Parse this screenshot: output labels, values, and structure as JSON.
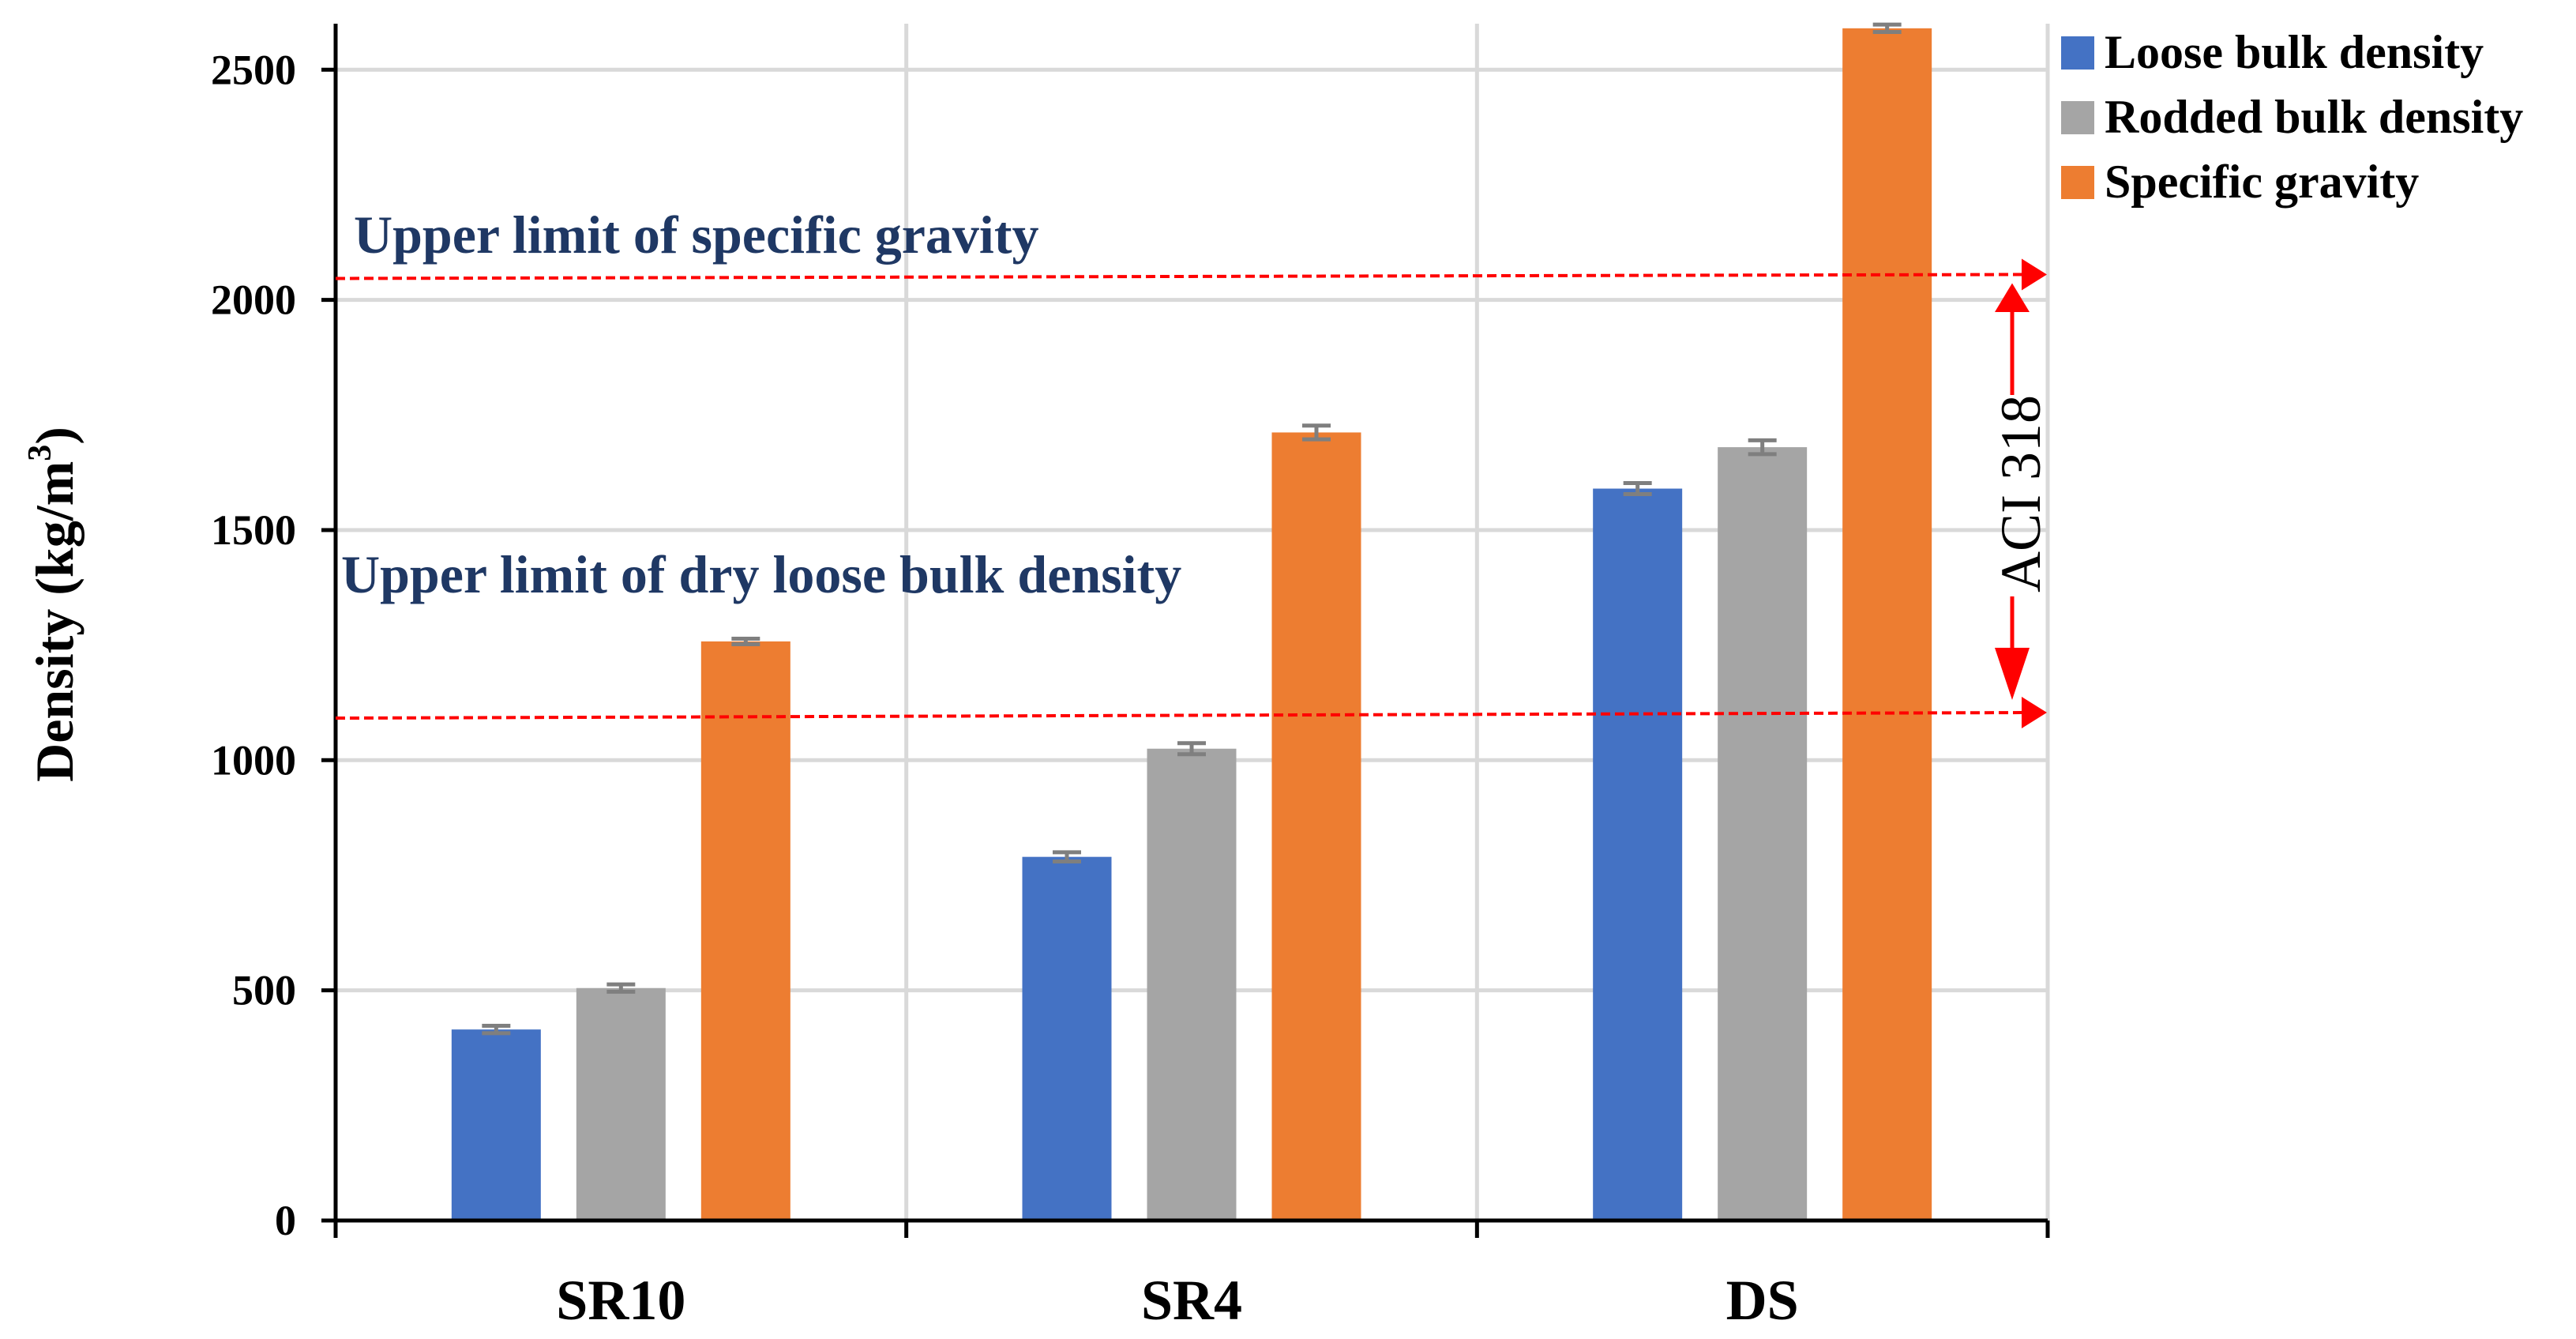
{
  "chart_data": {
    "type": "bar",
    "title": "",
    "xlabel": "",
    "ylabel": "Density (kg/m",
    "ylabel_superscript": "3",
    "ylabel_close": ")",
    "ylim": [
      0,
      2600
    ],
    "yticks": [
      0,
      500,
      1000,
      1500,
      2000,
      2500
    ],
    "categories": [
      "SR10",
      "SR4",
      "DS"
    ],
    "series": [
      {
        "name": "Loose bulk density",
        "color": "#4472C4",
        "values": [
          415,
          790,
          1590
        ],
        "errors": [
          8,
          10,
          12
        ]
      },
      {
        "name": "Rodded bulk density",
        "color": "#A5A5A5",
        "values": [
          505,
          1025,
          1680
        ],
        "errors": [
          8,
          12,
          15
        ]
      },
      {
        "name": "Specific gravity",
        "color": "#ED7D31",
        "values": [
          1258,
          1712,
          2590
        ],
        "errors": [
          6,
          15,
          8
        ]
      }
    ],
    "grid": true,
    "legend_position": "top-right",
    "annotations": {
      "specific_gravity_limit": {
        "label": "Upper limit of specific gravity",
        "value": 2050,
        "color": "#FF0000",
        "text_color": "#1F3864"
      },
      "loose_bulk_limit": {
        "label": "Upper limit of dry loose bulk density",
        "value": 1100,
        "color": "#FF0000",
        "text_color": "#1F3864"
      },
      "standard": {
        "label": "ACI 318",
        "color": "#FF0000"
      }
    }
  }
}
